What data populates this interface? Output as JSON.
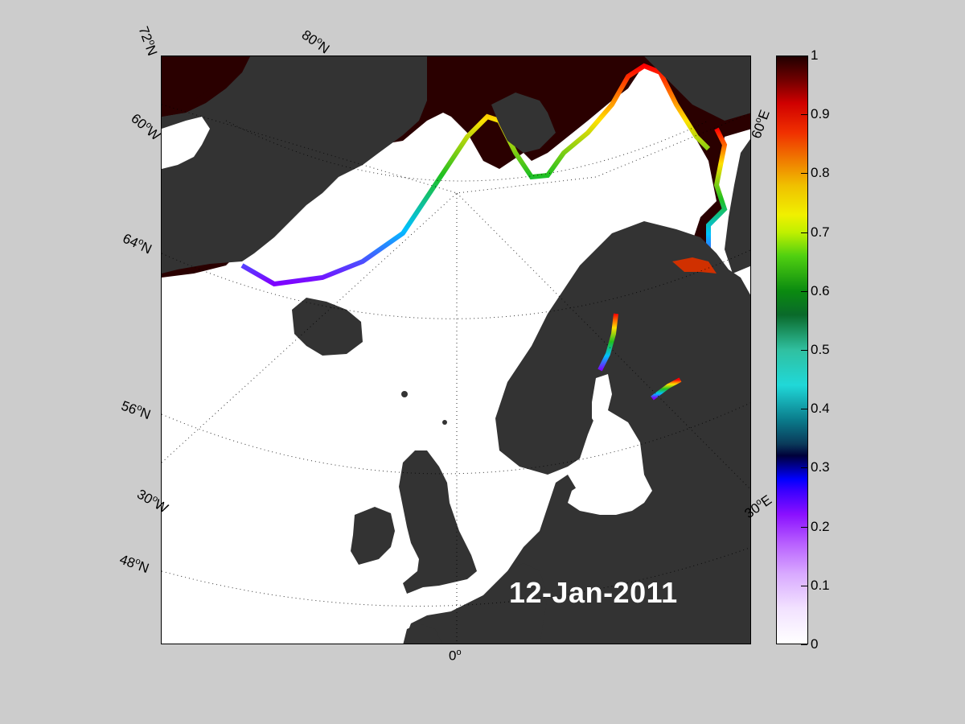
{
  "map": {
    "date": "12-Jan-2011",
    "land_color": "#333333",
    "ice_free_color": "#ffffff",
    "high_conc_color": "#2a0000"
  },
  "labels": {
    "lat_72N": "72",
    "lat_80N": "80",
    "lat_60N": "60",
    "lat_64N": "64",
    "lat_56N": "56",
    "lat_48N": "48",
    "lon_30W": "30",
    "lon_0": "0",
    "lon_30E": "30",
    "lon_60E": "60",
    "deg": "o",
    "suffix_N": "N",
    "suffix_W": "W",
    "suffix_E": "E"
  },
  "colorbar": {
    "ticks": [
      "1",
      "0.9",
      "0.8",
      "0.7",
      "0.6",
      "0.5",
      "0.4",
      "0.3",
      "0.2",
      "0.1",
      "0"
    ]
  }
}
